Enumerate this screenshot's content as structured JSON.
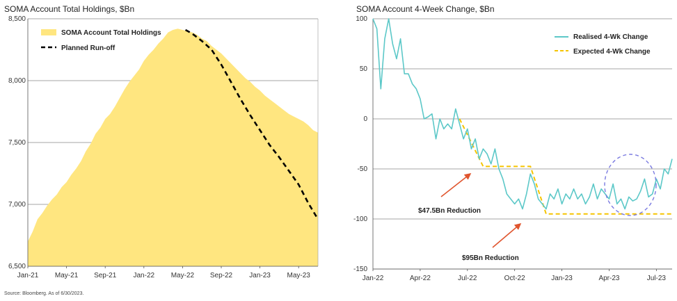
{
  "source_note": "Source: Bloomberg. As of 6/30/2023.",
  "colors": {
    "area_fill": "#FFE680",
    "area_fill_light": "#FFF3C0",
    "runoff": "#000000",
    "realised": "#5CC8C8",
    "expected": "#F5C400",
    "annotation_arrow": "#E0552E",
    "circle": "#7A7AE0",
    "grid": "#888888"
  },
  "chart_data": [
    {
      "type": "area",
      "title": "SOMA Account Total Holdings, $Bn",
      "xlabel": "",
      "ylabel": "",
      "ylim": [
        6500,
        8500
      ],
      "yticks": [
        "6,500",
        "7,000",
        "7,500",
        "8,000",
        "8,500"
      ],
      "ytick_values": [
        6500,
        7000,
        7500,
        8000,
        8500
      ],
      "xticks": [
        "Jan-21",
        "May-21",
        "Sep-21",
        "Jan-22",
        "May-22",
        "Sep-22",
        "Jan-23",
        "May-23"
      ],
      "x_range_months": [
        0,
        30
      ],
      "legend_position": "top-left",
      "series": [
        {
          "name": "SOMA Account Total Holdings",
          "style": "area",
          "x": [
            0,
            0.5,
            1,
            1.5,
            2,
            2.5,
            3,
            3.5,
            4,
            4.5,
            5,
            5.5,
            6,
            6.5,
            7,
            7.5,
            8,
            8.5,
            9,
            9.5,
            10,
            10.5,
            11,
            11.5,
            12,
            12.5,
            13,
            13.5,
            14,
            14.5,
            15,
            15.5,
            16,
            16.5,
            17,
            17.5,
            18,
            18.5,
            19,
            19.5,
            20,
            20.5,
            21,
            21.5,
            22,
            22.5,
            23,
            23.5,
            24,
            24.5,
            25,
            25.5,
            26,
            26.5,
            27,
            27.5,
            28,
            28.5,
            29,
            29.5,
            30
          ],
          "values": [
            6700,
            6780,
            6880,
            6930,
            6990,
            7040,
            7080,
            7140,
            7180,
            7240,
            7290,
            7350,
            7430,
            7490,
            7570,
            7620,
            7690,
            7730,
            7790,
            7860,
            7930,
            7990,
            8040,
            8090,
            8160,
            8210,
            8250,
            8300,
            8340,
            8390,
            8410,
            8420,
            8410,
            8400,
            8390,
            8370,
            8340,
            8320,
            8280,
            8250,
            8220,
            8180,
            8140,
            8100,
            8060,
            8020,
            7990,
            7950,
            7920,
            7880,
            7850,
            7820,
            7790,
            7760,
            7730,
            7710,
            7690,
            7670,
            7640,
            7600,
            7580
          ]
        },
        {
          "name": "Planned Run-off",
          "style": "dashed",
          "x": [
            16.3,
            17,
            18,
            19,
            20,
            21,
            22,
            23,
            24,
            25,
            26,
            27,
            28,
            29,
            30
          ],
          "values": [
            8410,
            8380,
            8320,
            8250,
            8130,
            7990,
            7850,
            7720,
            7600,
            7480,
            7380,
            7270,
            7160,
            7010,
            6880
          ]
        }
      ]
    },
    {
      "type": "line",
      "title": "SOMA Account 4-Week Change, $Bn",
      "xlabel": "",
      "ylabel": "",
      "ylim": [
        -150,
        100
      ],
      "yticks": [
        "-150",
        "-100",
        "-50",
        "0",
        "50",
        "100"
      ],
      "ytick_values": [
        -150,
        -100,
        -50,
        0,
        50,
        100
      ],
      "xticks": [
        "Jan-22",
        "Apr-22",
        "Jul-22",
        "Oct-22",
        "Jan-23",
        "Apr-23",
        "Jul-23"
      ],
      "x_range_months": [
        0,
        19
      ],
      "legend_position": "top-right",
      "annotations": [
        "$47.5Bn Reduction",
        "$95Bn Reduction"
      ],
      "series": [
        {
          "name": "Realised 4-Wk Change",
          "style": "line",
          "x": [
            0,
            0.25,
            0.5,
            0.75,
            1,
            1.25,
            1.5,
            1.75,
            2,
            2.25,
            2.5,
            2.75,
            3,
            3.25,
            3.5,
            3.75,
            4,
            4.25,
            4.5,
            4.75,
            5,
            5.25,
            5.5,
            5.75,
            6,
            6.25,
            6.5,
            6.75,
            7,
            7.25,
            7.5,
            7.75,
            8,
            8.25,
            8.5,
            8.75,
            9,
            9.25,
            9.5,
            9.75,
            10,
            10.25,
            10.5,
            10.75,
            11,
            11.25,
            11.5,
            11.75,
            12,
            12.25,
            12.5,
            12.75,
            13,
            13.25,
            13.5,
            13.75,
            14,
            14.25,
            14.5,
            14.75,
            15,
            15.25,
            15.5,
            15.75,
            16,
            16.25,
            16.5,
            16.75,
            17,
            17.25,
            17.5,
            17.75,
            18,
            18.25,
            18.5,
            18.75,
            19
          ],
          "values": [
            100,
            90,
            30,
            80,
            100,
            75,
            60,
            80,
            45,
            45,
            35,
            30,
            20,
            0,
            2,
            5,
            -20,
            0,
            -10,
            -5,
            -10,
            10,
            -5,
            -20,
            -10,
            -30,
            -20,
            -40,
            -30,
            -35,
            -45,
            -30,
            -50,
            -60,
            -75,
            -80,
            -85,
            -80,
            -90,
            -75,
            -55,
            -65,
            -80,
            -85,
            -90,
            -75,
            -80,
            -70,
            -85,
            -75,
            -80,
            -70,
            -80,
            -75,
            -85,
            -78,
            -65,
            -80,
            -70,
            -75,
            -80,
            -65,
            -85,
            -80,
            -90,
            -78,
            -82,
            -80,
            -72,
            -60,
            -78,
            -75,
            -60,
            -70,
            -50,
            -55,
            -40
          ]
        },
        {
          "name": "Expected 4-Wk Change",
          "style": "dashed",
          "x": [
            5.5,
            7,
            9,
            10,
            11,
            12,
            13,
            14,
            15,
            16,
            17,
            18,
            19
          ],
          "values": [
            0,
            -47.5,
            -47.5,
            -47.5,
            -95,
            -95,
            -95,
            -95,
            -95,
            -95,
            -95,
            -95,
            -95
          ]
        }
      ]
    }
  ]
}
